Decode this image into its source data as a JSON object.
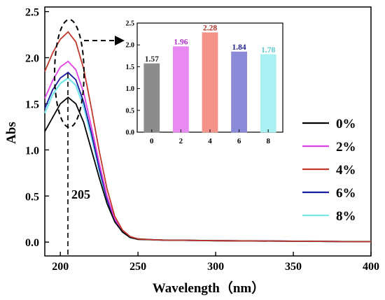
{
  "chart_data": [
    {
      "type": "line",
      "xlabel": "Wavelength（nm）",
      "ylabel": "Abs",
      "xlim": [
        190,
        400
      ],
      "ylim": [
        -0.15,
        2.55
      ],
      "xticks": [
        "200",
        "250",
        "300",
        "350",
        "400"
      ],
      "yticks": [
        "0.0",
        "0.5",
        "1.0",
        "1.5",
        "2.0",
        "2.5"
      ],
      "peak_label": "205",
      "legend_position": "right",
      "series": [
        {
          "name": "0%",
          "color": "#000000",
          "x": [
            190,
            195,
            200,
            205,
            210,
            215,
            220,
            225,
            230,
            235,
            240,
            245,
            250,
            260,
            270,
            280,
            300,
            350,
            400
          ],
          "y": [
            1.2,
            1.35,
            1.5,
            1.57,
            1.5,
            1.3,
            1.0,
            0.7,
            0.42,
            0.22,
            0.11,
            0.05,
            0.03,
            0.025,
            0.02,
            0.02,
            0.015,
            0.01,
            0.005
          ]
        },
        {
          "name": "2%",
          "color": "#e040e8",
          "x": [
            190,
            195,
            200,
            205,
            210,
            215,
            220,
            225,
            230,
            235,
            240,
            245,
            250,
            260,
            270,
            280,
            300,
            350,
            400
          ],
          "y": [
            1.56,
            1.75,
            1.9,
            1.96,
            1.87,
            1.62,
            1.25,
            0.86,
            0.5,
            0.25,
            0.12,
            0.055,
            0.035,
            0.025,
            0.02,
            0.02,
            0.015,
            0.01,
            0.005
          ]
        },
        {
          "name": "4%",
          "color": "#c0392b",
          "x": [
            190,
            195,
            200,
            205,
            210,
            215,
            220,
            225,
            230,
            235,
            240,
            245,
            250,
            260,
            270,
            280,
            300,
            350,
            400
          ],
          "y": [
            1.85,
            2.05,
            2.2,
            2.28,
            2.17,
            1.88,
            1.45,
            0.99,
            0.58,
            0.28,
            0.13,
            0.06,
            0.035,
            0.025,
            0.02,
            0.02,
            0.015,
            0.01,
            0.005
          ]
        },
        {
          "name": "6%",
          "color": "#1a1a9e",
          "x": [
            190,
            195,
            200,
            205,
            210,
            215,
            220,
            225,
            230,
            235,
            240,
            245,
            250,
            260,
            270,
            280,
            300,
            350,
            400
          ],
          "y": [
            1.45,
            1.65,
            1.78,
            1.84,
            1.76,
            1.52,
            1.18,
            0.8,
            0.47,
            0.23,
            0.11,
            0.05,
            0.035,
            0.025,
            0.02,
            0.02,
            0.015,
            0.01,
            0.005
          ]
        },
        {
          "name": "8%",
          "color": "#7de8ec",
          "x": [
            190,
            195,
            200,
            205,
            210,
            215,
            220,
            225,
            230,
            235,
            240,
            245,
            250,
            260,
            270,
            280,
            300,
            350,
            400
          ],
          "y": [
            1.4,
            1.6,
            1.72,
            1.78,
            1.7,
            1.47,
            1.14,
            0.78,
            0.46,
            0.23,
            0.11,
            0.05,
            0.035,
            0.025,
            0.02,
            0.02,
            0.015,
            0.01,
            0.005
          ]
        }
      ]
    },
    {
      "type": "bar",
      "categories": [
        "0",
        "2",
        "4",
        "6",
        "8"
      ],
      "values": [
        1.57,
        1.96,
        2.28,
        1.84,
        1.78
      ],
      "value_labels": [
        "1.57",
        "1.96",
        "2.28",
        "1.84",
        "1.78"
      ],
      "colors": [
        "#8c8c8c",
        "#e88af0",
        "#f4938a",
        "#8a8ad8",
        "#a8f0f2"
      ],
      "label_colors": [
        "#222222",
        "#b030c8",
        "#b03020",
        "#20208a",
        "#60c8d0"
      ],
      "ylim": [
        0,
        2.5
      ],
      "yticks": [
        "0.0",
        "0.5",
        "1.0",
        "1.5",
        "2.0",
        "2.5"
      ]
    }
  ]
}
